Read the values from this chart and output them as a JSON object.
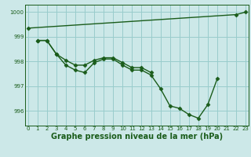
{
  "bg_color": "#cce8e8",
  "grid_color": "#99cccc",
  "line_color": "#1a5c1a",
  "marker": "D",
  "markersize": 2.5,
  "linewidth": 1.0,
  "series": [
    {
      "x": [
        0,
        22,
        23
      ],
      "y": [
        999.35,
        999.9,
        1000.0
      ]
    },
    {
      "x": [
        1,
        2,
        3,
        4,
        5,
        6,
        7,
        8,
        9,
        10,
        11,
        12,
        13,
        14,
        15,
        16,
        17,
        18,
        19,
        20
      ],
      "y": [
        998.85,
        998.85,
        998.3,
        997.85,
        997.65,
        997.55,
        997.95,
        998.1,
        998.1,
        997.85,
        997.65,
        997.65,
        997.45,
        996.9,
        996.2,
        996.1,
        995.85,
        995.7,
        996.25,
        997.3
      ]
    },
    {
      "x": [
        1,
        2,
        3,
        4,
        5,
        6,
        7,
        8,
        9,
        10,
        11,
        12,
        13
      ],
      "y": [
        998.85,
        998.85,
        998.3,
        998.05,
        997.85,
        997.85,
        998.05,
        998.15,
        998.15,
        997.95,
        997.75,
        997.75,
        997.55
      ]
    }
  ],
  "xlim": [
    -0.3,
    23.3
  ],
  "ylim": [
    995.4,
    1000.3
  ],
  "yticks": [
    996,
    997,
    998,
    999,
    1000
  ],
  "xticks": [
    0,
    1,
    2,
    3,
    4,
    5,
    6,
    7,
    8,
    9,
    10,
    11,
    12,
    13,
    14,
    15,
    16,
    17,
    18,
    19,
    20,
    21,
    22,
    23
  ],
  "xlabel": "Graphe pression niveau de la mer (hPa)",
  "xlabel_fontsize": 7.0,
  "tick_fontsize": 5.0,
  "tick_color": "#1a5c1a",
  "figsize": [
    3.2,
    2.0
  ],
  "dpi": 100
}
